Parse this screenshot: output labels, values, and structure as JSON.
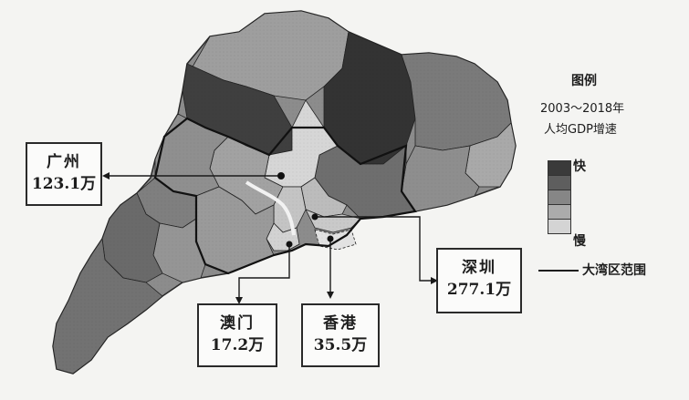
{
  "legend": {
    "title": "图例",
    "subtitle_line1": "2003～2018年",
    "subtitle_line2": "人均GDP增速",
    "fast_label": "快",
    "slow_label": "慢",
    "boundary_label": "大湾区范围",
    "scale_colors": [
      "#3a3a3a",
      "#5e5e5e",
      "#868686",
      "#ababab",
      "#d4d4d4"
    ]
  },
  "cities": [
    {
      "id": "guangzhou",
      "name": "广州",
      "value": "123.1万"
    },
    {
      "id": "macau",
      "name": "澳门",
      "value": "17.2万"
    },
    {
      "id": "hongkong",
      "name": "香港",
      "value": "35.5万"
    },
    {
      "id": "shenzhen",
      "name": "深圳",
      "value": "277.1万"
    }
  ]
}
